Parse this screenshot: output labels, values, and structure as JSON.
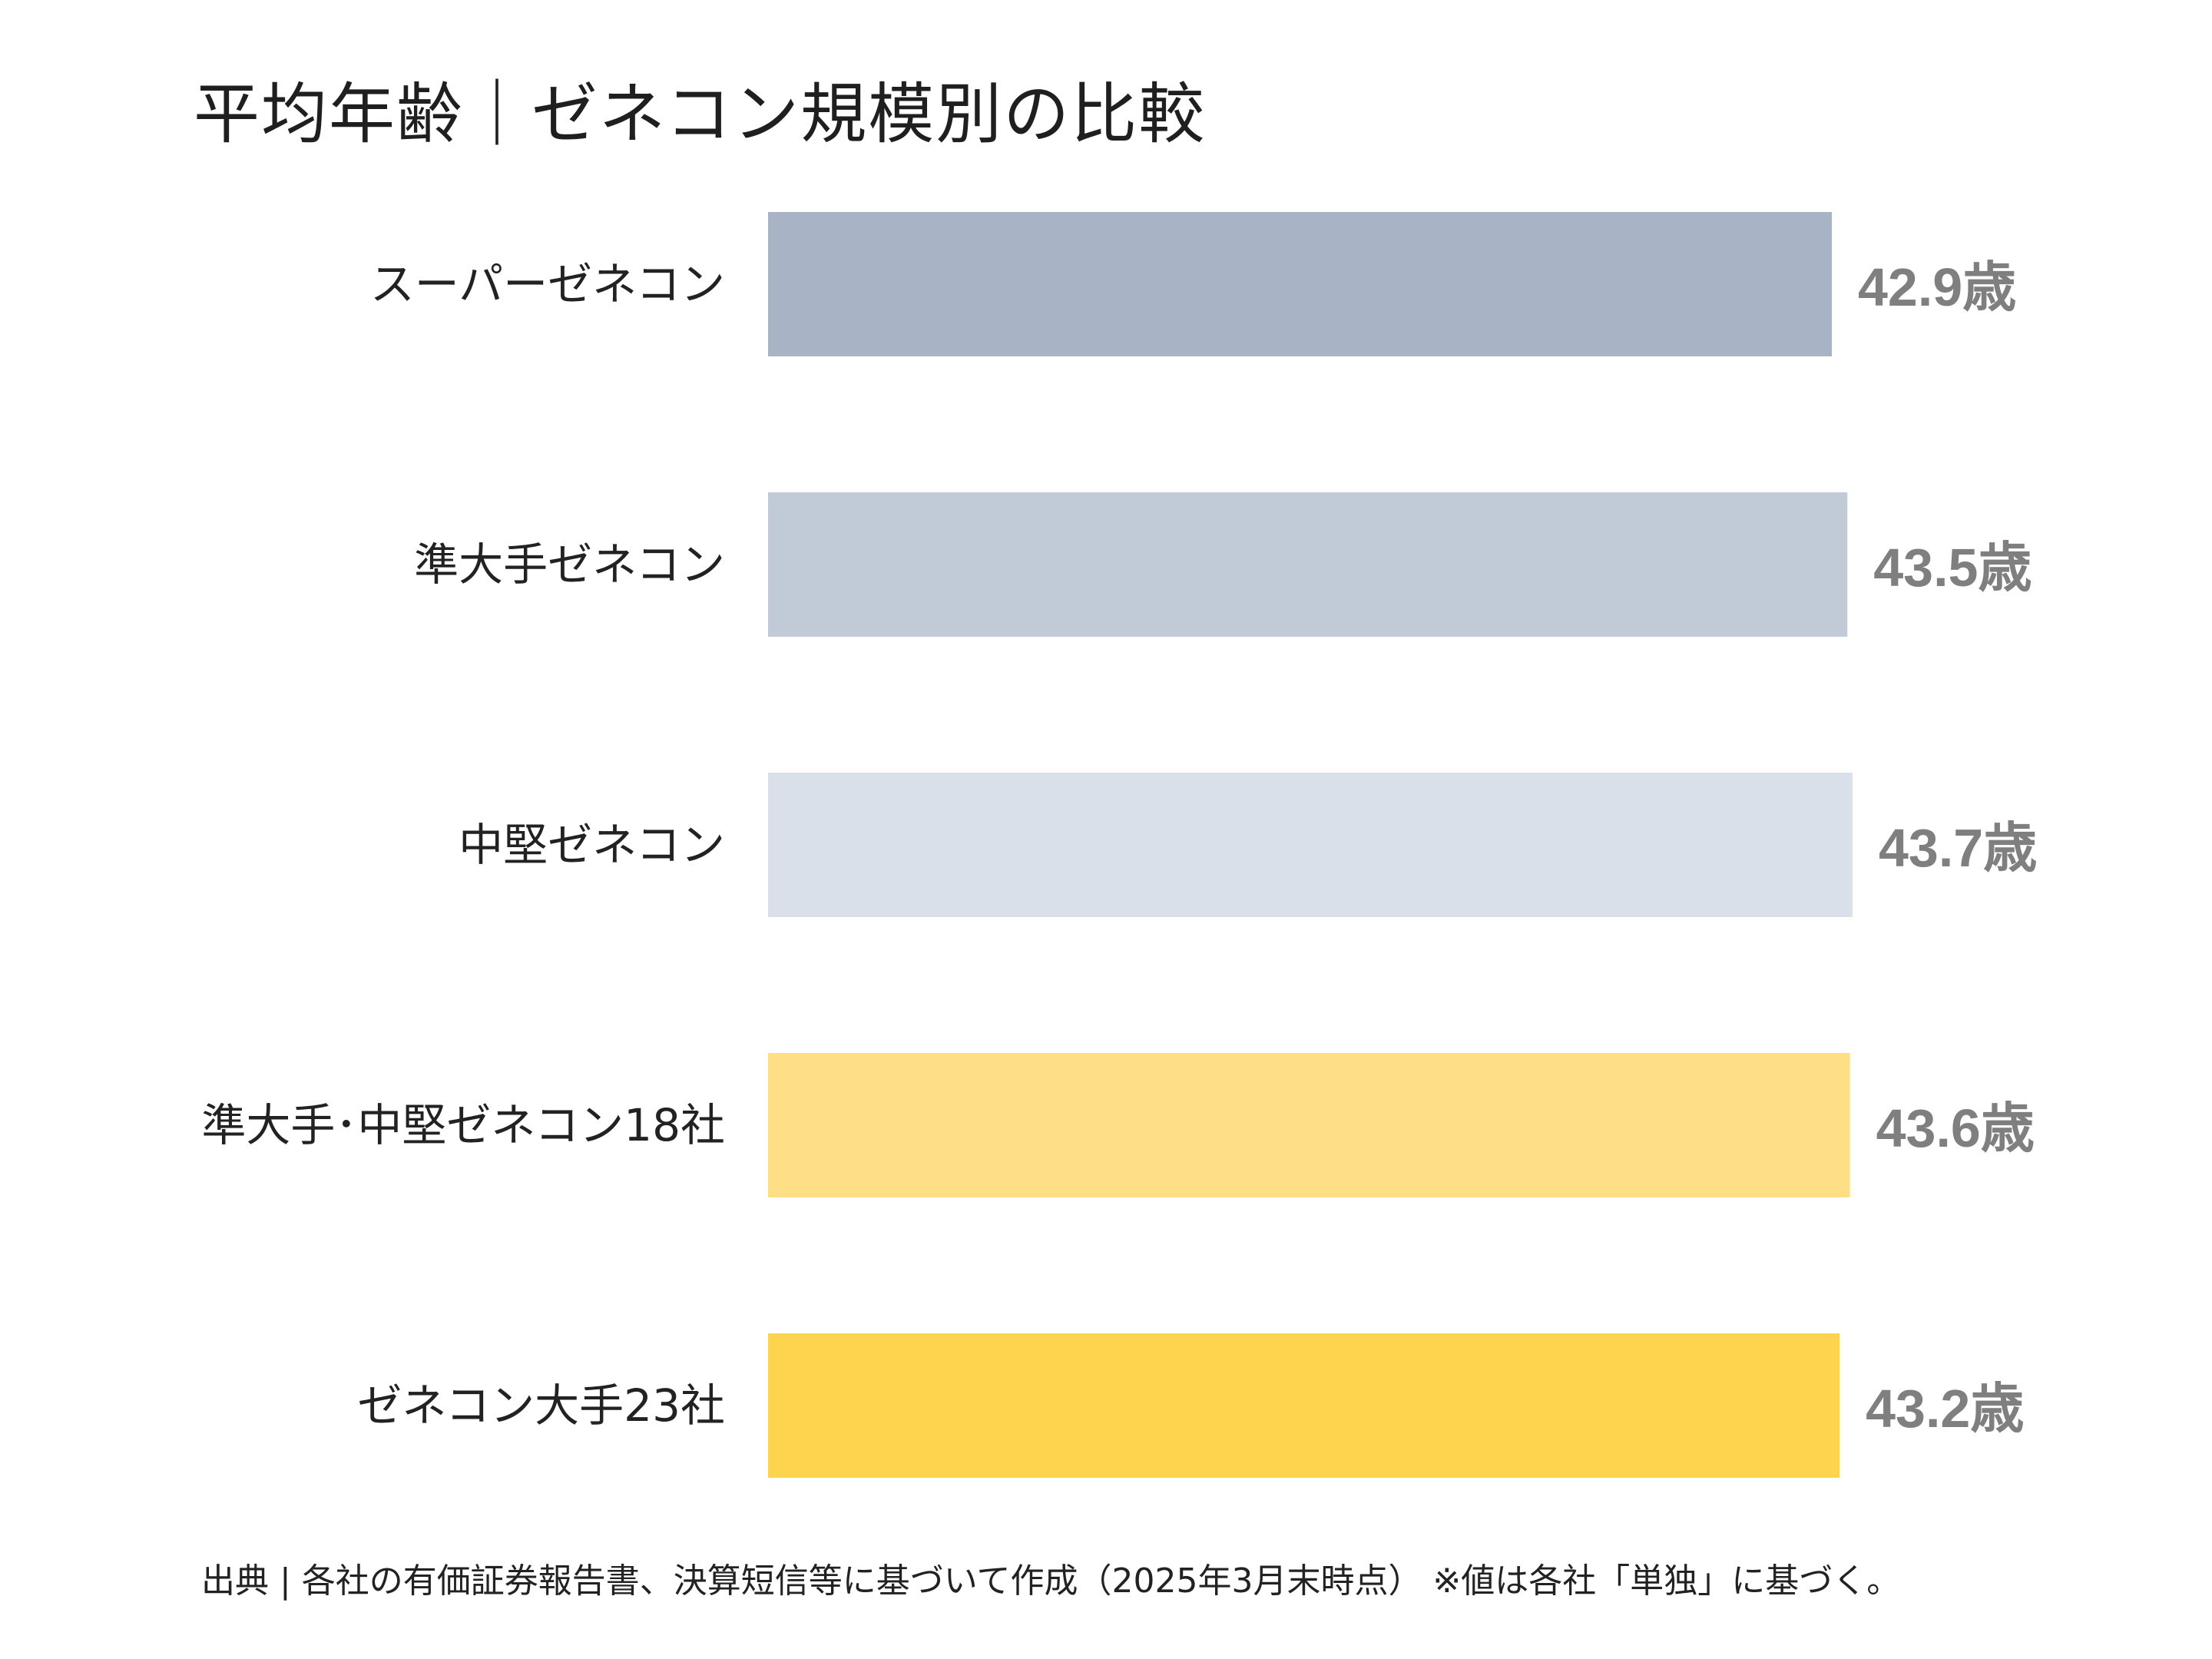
{
  "chart_data": {
    "type": "bar",
    "orientation": "horizontal",
    "title": "平均年齢｜ゼネコン規模別の比較",
    "categories": [
      "スーパーゼネコン",
      "準大手ゼネコン",
      "中堅ゼネコン",
      "準大手･中堅ゼネコン18社",
      "ゼネコン大手23社"
    ],
    "values": [
      42.9,
      43.5,
      43.7,
      43.6,
      43.2
    ],
    "value_labels": [
      "42.9歳",
      "43.5歳",
      "43.7歳",
      "43.6歳",
      "43.2歳"
    ],
    "unit": "歳",
    "colors": [
      "#a8b4c6",
      "#c1cad7",
      "#dae0e9",
      "#fedf86",
      "#fcd44d"
    ],
    "value_label_color": "#7f7f7f",
    "grid": false,
    "axes_visible": false,
    "legend": "none",
    "footnote": "出典 | 各社の有価証券報告書、決算短信等に基づいて作成（2025年3月末時点） ※値は各社「単独」に基づく。"
  }
}
